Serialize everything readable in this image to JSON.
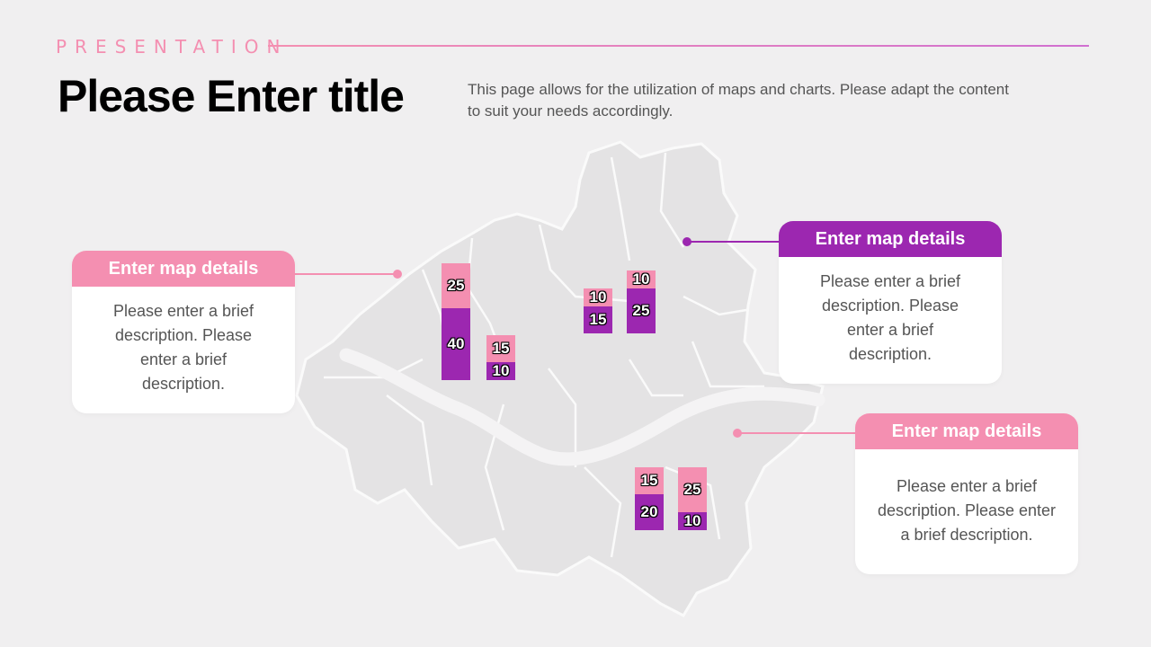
{
  "header": {
    "eyebrow": "PRESENTATION",
    "title": "Please Enter title",
    "subtitle": "This page allows for the utilization of maps and charts. Please adapt the content to suit your needs accordingly."
  },
  "colors": {
    "pink": "#f48fb1",
    "purple": "#9c27b0",
    "map_fill": "#e4e3e4",
    "background": "#f0eff0"
  },
  "cards": [
    {
      "heading": "Enter map details",
      "body": "Please enter a brief description. Please enter a brief description."
    },
    {
      "heading": "Enter map details",
      "body": "Please enter a brief description. Please enter a brief description."
    },
    {
      "heading": "Enter map details",
      "body": "Please enter a brief description. Please enter a brief description."
    }
  ],
  "chart_data": {
    "type": "bar",
    "stacked": true,
    "groups": [
      {
        "bars": [
          {
            "pink": 25,
            "purple": 40
          },
          {
            "pink": 15,
            "purple": 10
          }
        ]
      },
      {
        "bars": [
          {
            "pink": 10,
            "purple": 15
          },
          {
            "pink": 10,
            "purple": 25
          }
        ]
      },
      {
        "bars": [
          {
            "pink": 15,
            "purple": 20
          },
          {
            "pink": 25,
            "purple": 10
          }
        ]
      }
    ]
  }
}
